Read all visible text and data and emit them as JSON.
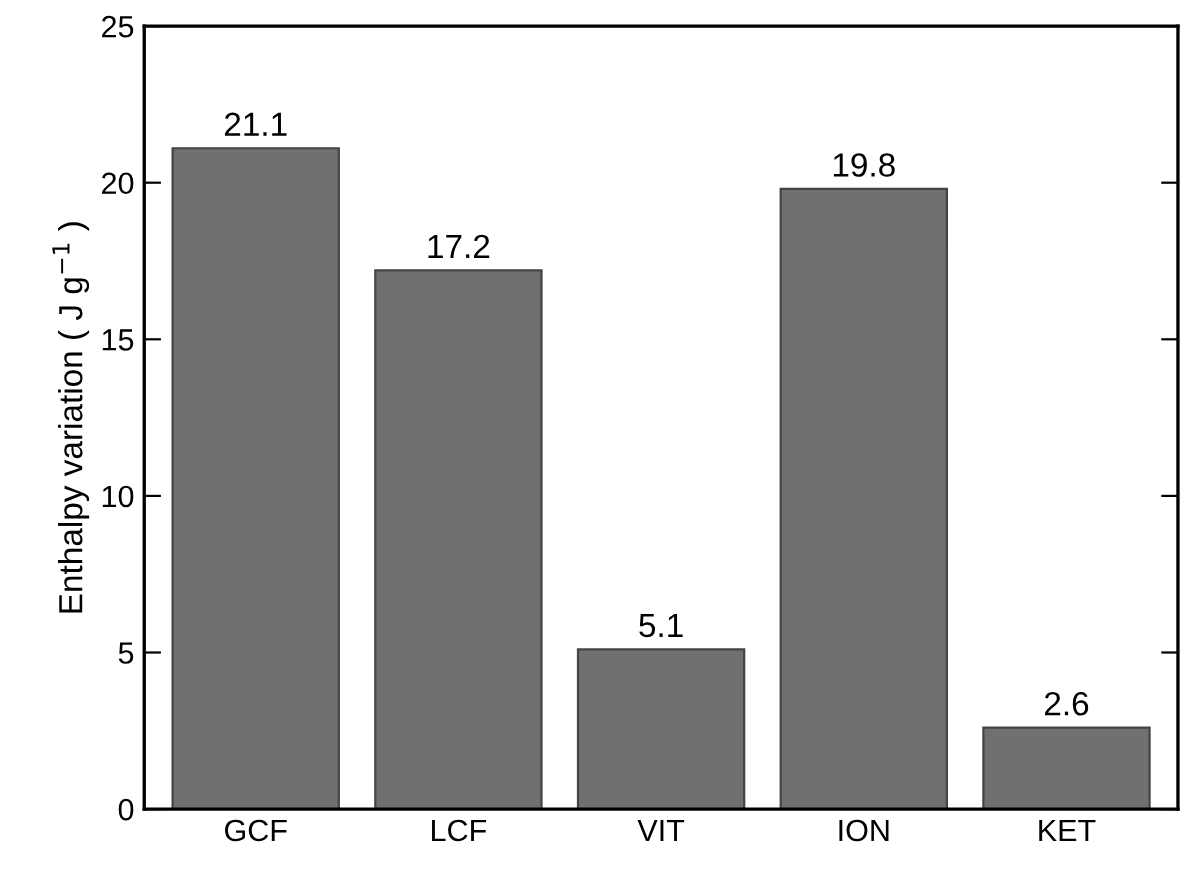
{
  "chart_data": {
    "type": "bar",
    "ylabel": "Enthalpy variation ( J g$^{−1}$ )",
    "categories": [
      "GCF",
      "LCF",
      "VIT",
      "ION",
      "KET"
    ],
    "values": [
      21.1,
      17.2,
      5.1,
      19.8,
      2.6
    ],
    "color": "#707070",
    "ylim": [
      0,
      25
    ],
    "yticks": [
      0,
      5,
      10,
      15,
      20,
      25
    ],
    "grid": false,
    "data_labels": true
  }
}
